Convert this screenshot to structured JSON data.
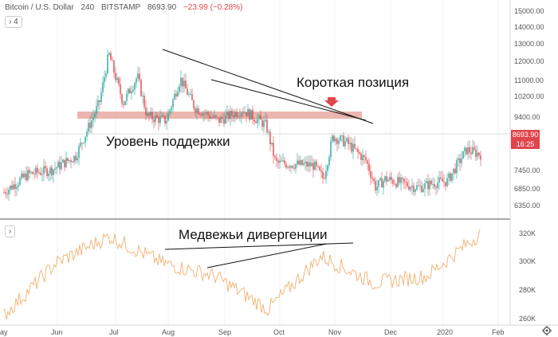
{
  "header": {
    "symbol": "Bitcoin / U.S. Dollar",
    "interval": "240",
    "exchange": "BITSTAMP",
    "last_price": "8693.90",
    "change": "−23.99 (−0.28%)"
  },
  "indicator_count": "4",
  "price_axis": [
    "15000.00",
    "14000.00",
    "13000.00",
    "12000.00",
    "11000.00",
    "10200.00",
    "9400.00",
    "8693.90",
    "16:25",
    "7450.00",
    "6850.00",
    "6350.00"
  ],
  "oscillator_axis": [
    "320K",
    "300K",
    "280K",
    "260K"
  ],
  "time_axis": [
    "ay",
    "Jun",
    "Jul",
    "Aug",
    "Sep",
    "Oct",
    "Nov",
    "Dec",
    "2020",
    "Feb"
  ],
  "annotations": {
    "short_position": "Короткая позиция",
    "support_level": "Уровень поддержки",
    "bearish_divergence": "Медвежьи дивергенции"
  },
  "colors": {
    "up": "#26a69a",
    "down": "#e0454b",
    "support_band": "#e9a9a2",
    "oscillator": "#f2b77b",
    "price_tag": "#e0454b"
  },
  "icons": {
    "settings": "gear-icon",
    "collapse": "chevron-icon"
  },
  "chart_data": {
    "type": "candlestick",
    "title": "",
    "x": [
      "May",
      "Jun",
      "Jul",
      "Aug",
      "Sep",
      "Oct",
      "Nov",
      "Dec",
      "Jan",
      "Feb"
    ],
    "close_approx": [
      7900,
      8500,
      11500,
      11000,
      10200,
      8300,
      9300,
      7400,
      7200,
      8700
    ],
    "ylim": [
      5900,
      15400
    ],
    "support_level": 9400,
    "oscillator": {
      "ylim": [
        255000,
        330000
      ],
      "values_approx": [
        260000,
        300000,
        320000,
        300000,
        290000,
        265000,
        305000,
        285000,
        290000,
        322000
      ]
    }
  }
}
